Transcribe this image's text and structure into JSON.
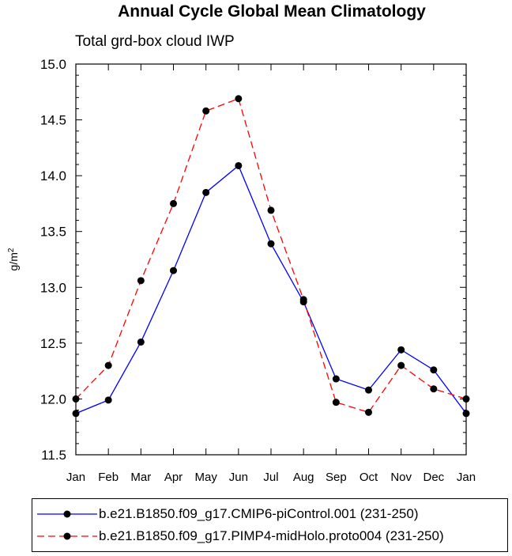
{
  "chart_data": {
    "type": "line",
    "title": "Annual Cycle Global Mean Climatology",
    "subtitle": "Total grd-box cloud IWP",
    "ylabel": "g/m",
    "ylabel_sup": "2",
    "xlabel": "",
    "categories": [
      "Jan",
      "Feb",
      "Mar",
      "Apr",
      "May",
      "Jun",
      "Jul",
      "Aug",
      "Sep",
      "Oct",
      "Nov",
      "Dec",
      "Jan"
    ],
    "ylim": [
      11.5,
      15.0
    ],
    "yticks": [
      "11.5",
      "12.0",
      "12.5",
      "13.0",
      "13.5",
      "14.0",
      "14.5",
      "15.0"
    ],
    "series": [
      {
        "name": "b.e21.B1850.f09_g17.CMIP6-piControl.001 (231-250)",
        "color": "#0000ff",
        "dash": "solid",
        "values": [
          11.87,
          11.99,
          12.51,
          13.15,
          13.85,
          14.09,
          13.39,
          12.87,
          12.18,
          12.08,
          12.44,
          12.26,
          11.87
        ]
      },
      {
        "name": "b.e21.B1850.f09_g17.PIMP4-midHolo.proto004 (231-250)",
        "color": "#ff0000",
        "dash": "dashed",
        "values": [
          12.0,
          12.3,
          13.06,
          13.75,
          14.58,
          14.69,
          13.69,
          12.89,
          11.97,
          11.88,
          12.3,
          12.09,
          12.0
        ]
      }
    ],
    "marker_color": "#000000",
    "grid": false
  }
}
